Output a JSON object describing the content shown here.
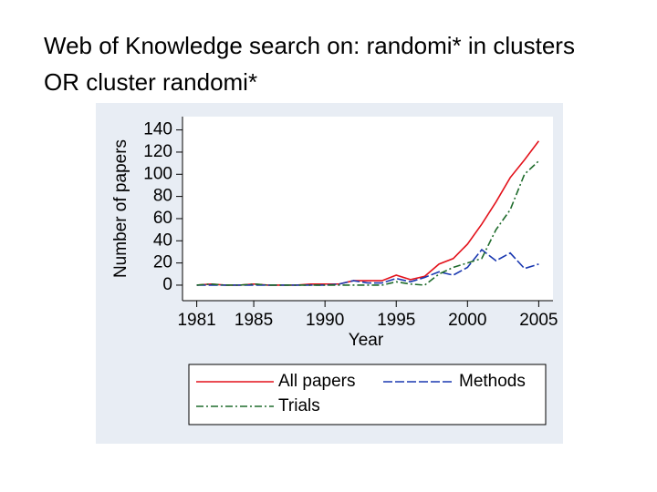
{
  "chart_data": {
    "type": "line",
    "title": "Web of Knowledge search on: randomi* in clusters OR cluster randomi*",
    "x_label": "Year",
    "y_label": "Number of papers",
    "x": [
      1981,
      1982,
      1983,
      1984,
      1985,
      1986,
      1987,
      1988,
      1989,
      1990,
      1991,
      1992,
      1993,
      1994,
      1995,
      1996,
      1997,
      1998,
      1999,
      2000,
      2001,
      2002,
      2003,
      2004,
      2005
    ],
    "series": [
      {
        "name": "All papers",
        "color": "#e3121b",
        "dash": "none",
        "values": [
          0,
          1,
          0,
          0,
          1,
          0,
          0,
          0,
          1,
          1,
          1,
          4,
          4,
          4,
          9,
          5,
          8,
          19,
          24,
          37,
          55,
          75,
          97,
          113,
          130
        ]
      },
      {
        "name": "Methods",
        "color": "#1a38b0",
        "dash": "10,3",
        "values": [
          0,
          0,
          0,
          0,
          0,
          0,
          0,
          0,
          0,
          0,
          1,
          4,
          2,
          2,
          6,
          3,
          7,
          12,
          9,
          16,
          32,
          22,
          29,
          15,
          19
        ]
      },
      {
        "name": "Trials",
        "color": "#1e6b2b",
        "dash": "8,3,2,3",
        "values": [
          0,
          1,
          0,
          0,
          1,
          0,
          0,
          0,
          0,
          0,
          0,
          0,
          0,
          0,
          3,
          1,
          0,
          10,
          16,
          20,
          24,
          50,
          68,
          100,
          112
        ]
      }
    ],
    "xlim": [
      1980,
      2006
    ],
    "ylim": [
      -14,
      152
    ],
    "xticks": [
      1981,
      1985,
      1990,
      1995,
      2000,
      2005
    ],
    "yticks": [
      0,
      20,
      40,
      60,
      80,
      100,
      120,
      140
    ],
    "grid": false,
    "legend": "bottom"
  }
}
